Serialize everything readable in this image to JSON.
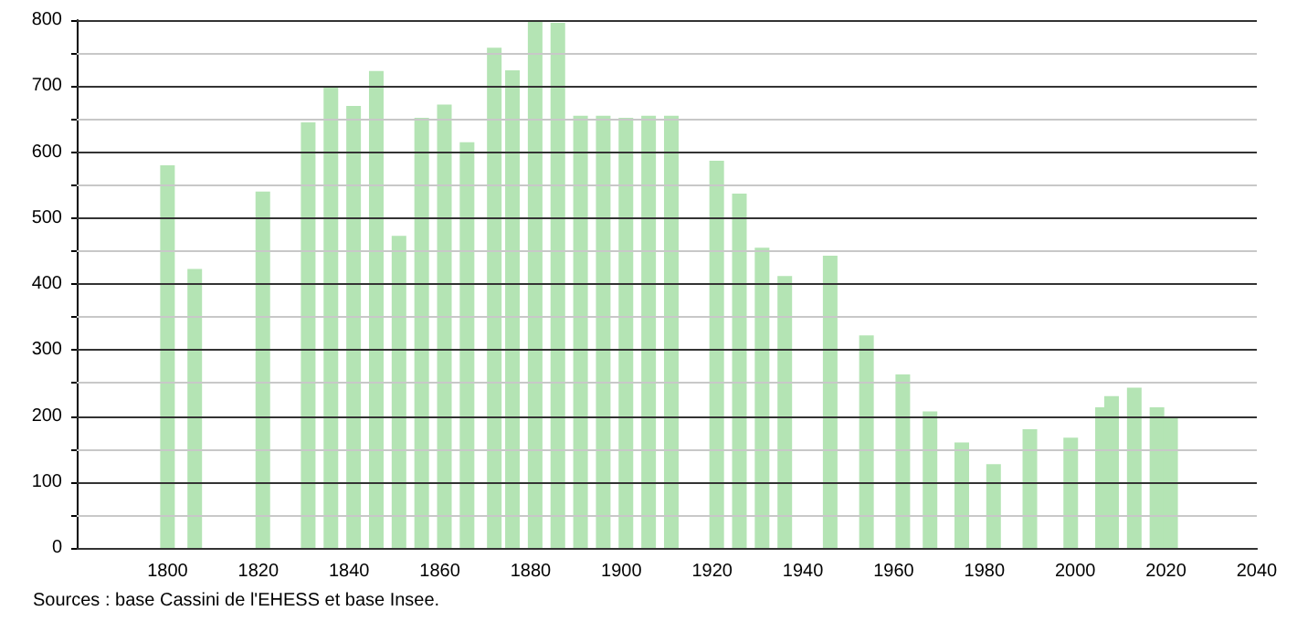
{
  "chart_data": {
    "type": "bar",
    "x": [
      1800,
      1806,
      1821,
      1831,
      1836,
      1841,
      1846,
      1851,
      1856,
      1861,
      1866,
      1872,
      1876,
      1881,
      1886,
      1891,
      1896,
      1901,
      1906,
      1911,
      1921,
      1926,
      1931,
      1936,
      1946,
      1954,
      1962,
      1968,
      1975,
      1982,
      1990,
      1999,
      2006,
      2008,
      2013,
      2018,
      2021
    ],
    "values": [
      580,
      423,
      540,
      645,
      700,
      670,
      723,
      473,
      652,
      672,
      615,
      758,
      724,
      800,
      796,
      655,
      655,
      652,
      655,
      655,
      587,
      537,
      455,
      412,
      443,
      322,
      263,
      207,
      160,
      127,
      180,
      167,
      213,
      230,
      243,
      213,
      198
    ],
    "color": "#b4e4b4",
    "xlim": [
      1780,
      2040
    ],
    "xticks": [
      1800,
      1820,
      1840,
      1860,
      1880,
      1900,
      1920,
      1940,
      1960,
      1980,
      2000,
      2020,
      2040
    ],
    "ylim": [
      0,
      800
    ],
    "yticks": [
      0,
      {
        "value": 50,
        "label": null
      },
      100,
      {
        "value": 150,
        "label": null
      },
      200,
      {
        "value": 250,
        "label": null
      },
      300,
      {
        "value": 350,
        "label": null
      },
      400,
      {
        "value": 450,
        "label": null
      },
      500,
      {
        "value": 550,
        "label": null
      },
      600,
      {
        "value": 650,
        "label": null
      },
      700,
      {
        "value": 750,
        "label": null
      },
      800
    ],
    "grid": "y",
    "annotations": [
      "Sources : base Cassini de l'EHESS et base Insee."
    ]
  }
}
